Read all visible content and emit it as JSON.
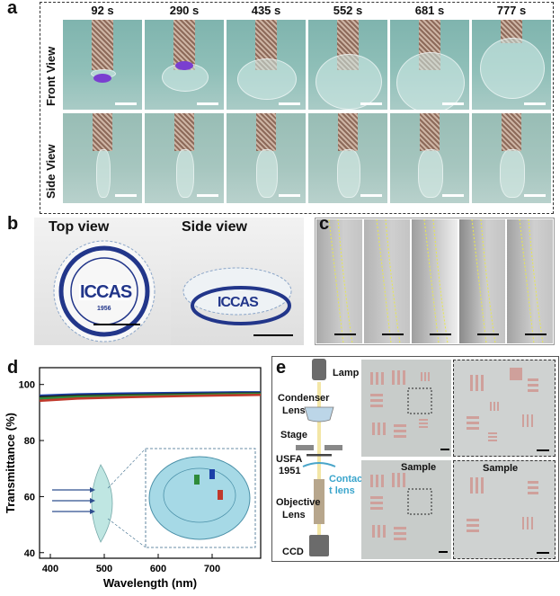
{
  "panels": {
    "a": {
      "label": "a",
      "times": [
        "92 s",
        "290 s",
        "435 s",
        "552 s",
        "681 s",
        "777 s"
      ],
      "row_labels": [
        "Front View",
        "Side View"
      ]
    },
    "b": {
      "label": "b",
      "top_view": "Top view",
      "side_view": "Side view",
      "logo_text": "ICCAS",
      "logo_year": "1956"
    },
    "c": {
      "label": "c"
    },
    "d": {
      "label": "d"
    },
    "e": {
      "label": "e",
      "lamp": "Lamp",
      "condenser": "Condenser",
      "condenser2": "Lens",
      "stage": "Stage",
      "usfa": "USFA",
      "usfa2": "1951",
      "contact": "Contac",
      "contact2": "t lens",
      "objective": "Objective",
      "objective2": "Lens",
      "ccd": "CCD",
      "sample1": "Sample",
      "sample2": "Sample"
    }
  },
  "chart_data": {
    "type": "line",
    "xlabel": "Wavelength (nm)",
    "ylabel": "Transmittance (%)",
    "xlim": [
      380,
      790
    ],
    "ylim": [
      38,
      106
    ],
    "xticks": [
      400,
      500,
      600,
      700
    ],
    "yticks": [
      40,
      60,
      80,
      100
    ],
    "series": [
      {
        "color": "#1a3fa8",
        "x": [
          380,
          450,
          550,
          650,
          750,
          790
        ],
        "y": [
          96.0,
          96.5,
          96.8,
          97.0,
          97.2,
          97.2
        ]
      },
      {
        "color": "#222222",
        "x": [
          380,
          450,
          550,
          650,
          750,
          790
        ],
        "y": [
          95.5,
          96.0,
          96.3,
          96.6,
          96.8,
          96.9
        ]
      },
      {
        "color": "#2e8b3a",
        "x": [
          380,
          450,
          550,
          650,
          750,
          790
        ],
        "y": [
          95.0,
          95.6,
          96.0,
          96.3,
          96.6,
          96.7
        ]
      },
      {
        "color": "#c0392b",
        "x": [
          380,
          450,
          550,
          650,
          750,
          790
        ],
        "y": [
          94.2,
          95.0,
          95.5,
          95.9,
          96.2,
          96.3
        ]
      }
    ]
  }
}
